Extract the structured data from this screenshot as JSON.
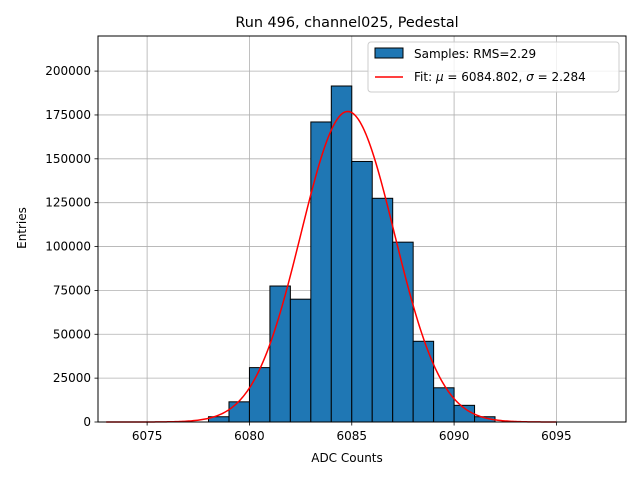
{
  "chart_data": {
    "type": "bar",
    "title": "Run 496, channel025, Pedestal",
    "xlabel": "ADC Counts",
    "ylabel": "Entries",
    "xlim": [
      6072.6,
      6098.4
    ],
    "ylim": [
      0,
      220000
    ],
    "x_ticks": [
      6075,
      6080,
      6085,
      6090,
      6095
    ],
    "y_ticks": [
      0,
      25000,
      50000,
      75000,
      100000,
      125000,
      150000,
      175000,
      200000
    ],
    "grid": true,
    "legend_position": "top-right",
    "histogram": {
      "name": "Samples: RMS=2.29",
      "color": "#1f77b4",
      "edgecolor": "#000000",
      "bin_edges": [
        6078,
        6079,
        6080,
        6081,
        6082,
        6083,
        6084,
        6085,
        6086,
        6087,
        6088,
        6089,
        6090,
        6091,
        6092
      ],
      "counts": [
        3000,
        11500,
        31000,
        77500,
        70000,
        171000,
        191500,
        148500,
        127500,
        102500,
        46000,
        19500,
        9500,
        3000
      ]
    },
    "fit": {
      "name_prefix": "Fit: ",
      "name_mu": "μ",
      "name_mid": " = 6084.802, ",
      "name_sigma": "σ",
      "name_suffix": " = 2.284",
      "color": "#ff0000",
      "mu": 6084.802,
      "sigma": 2.284,
      "amplitude": 177000,
      "x_range": [
        6073,
        6095
      ]
    }
  }
}
